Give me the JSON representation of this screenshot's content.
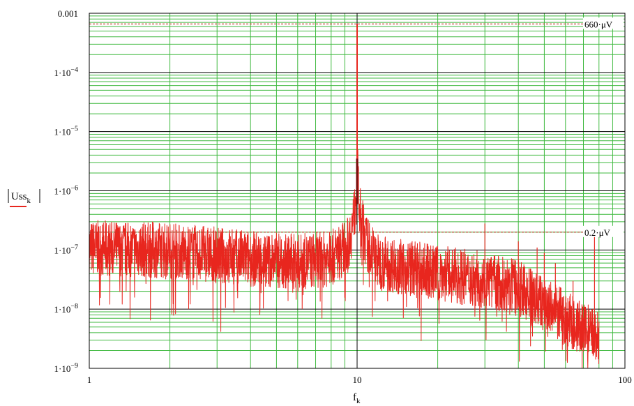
{
  "chart_data": {
    "type": "line",
    "title": "",
    "xlabel": "f",
    "xlabel_sub": "k",
    "ylabel": "Uss",
    "ylabel_sub": "k",
    "x_scale": "log",
    "y_scale": "log",
    "xlim": [
      1,
      100
    ],
    "ylim": [
      1e-09,
      0.001
    ],
    "grid": true,
    "colors": {
      "series": "#e8261e",
      "grid_minor": "#3fb93f",
      "grid_major": "#000000",
      "marker_line": "#c0392b"
    },
    "x_ticks": [
      {
        "value": 1,
        "label": "1"
      },
      {
        "value": 10,
        "label": "10"
      },
      {
        "value": 100,
        "label": "100"
      }
    ],
    "y_ticks": [
      {
        "value": 0.001,
        "base": "0.001",
        "exp": ""
      },
      {
        "value": 0.0001,
        "base": "1·10",
        "exp": "−4"
      },
      {
        "value": 1e-05,
        "base": "1·10",
        "exp": "−5"
      },
      {
        "value": 1e-06,
        "base": "1·10",
        "exp": "−6"
      },
      {
        "value": 1e-07,
        "base": "1·10",
        "exp": "−7"
      },
      {
        "value": 1e-08,
        "base": "1·10",
        "exp": "−8"
      },
      {
        "value": 1e-09,
        "base": "1·10",
        "exp": "−9"
      }
    ],
    "markers": [
      {
        "value": 0.00066,
        "label": "660·μV"
      },
      {
        "value": 2e-07,
        "label": "0.2·μV"
      }
    ],
    "series": [
      {
        "name": "",
        "peak": {
          "x": 10,
          "y": 0.00066
        },
        "x_end": 80,
        "noise_floor": [
          {
            "x": 1.0,
            "y": 1.2e-07
          },
          {
            "x": 2.0,
            "y": 1.1e-07
          },
          {
            "x": 4.0,
            "y": 8e-08
          },
          {
            "x": 6.0,
            "y": 7e-08
          },
          {
            "x": 8.0,
            "y": 8e-08
          },
          {
            "x": 9.3,
            "y": 1.4e-07
          },
          {
            "x": 9.8,
            "y": 5e-07
          },
          {
            "x": 10.0,
            "y": 3.5e-06
          },
          {
            "x": 10.2,
            "y": 5e-07
          },
          {
            "x": 10.8,
            "y": 1.5e-07
          },
          {
            "x": 12.0,
            "y": 7e-08
          },
          {
            "x": 20.0,
            "y": 4.5e-08
          },
          {
            "x": 30.0,
            "y": 3.5e-08
          },
          {
            "x": 40.0,
            "y": 2.5e-08
          },
          {
            "x": 55.0,
            "y": 1e-08
          },
          {
            "x": 70.0,
            "y": 5e-09
          },
          {
            "x": 80.0,
            "y": 3.5e-09
          }
        ],
        "spurs": [
          {
            "x": 30,
            "y": 2.8e-07
          },
          {
            "x": 40,
            "y": 1.4e-07
          },
          {
            "x": 47,
            "y": 1.1e-07
          },
          {
            "x": 50,
            "y": 9e-08
          },
          {
            "x": 55,
            "y": 6e-08
          },
          {
            "x": 64,
            "y": 3e-08
          },
          {
            "x": 77,
            "y": 2.2e-07
          }
        ]
      }
    ]
  }
}
